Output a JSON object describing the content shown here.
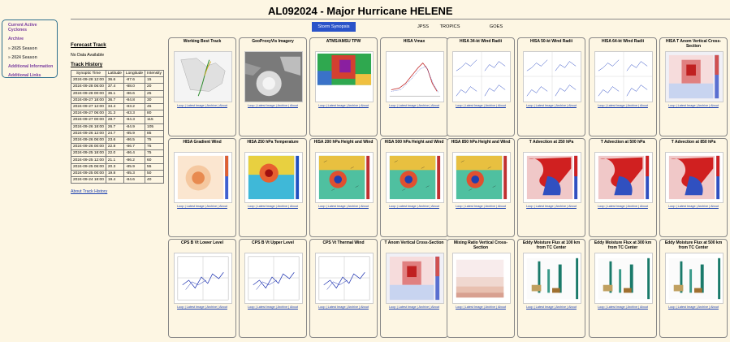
{
  "sidebar": {
    "items": [
      {
        "label": "Current Active",
        "cls": ""
      },
      {
        "label": "Cyclones",
        "cls": ""
      },
      {
        "label": "Archive",
        "cls": "gap"
      },
      {
        "label": "» 2025 Season",
        "cls": "gap sect"
      },
      {
        "label": "» 2024 Season",
        "cls": "gap sect"
      },
      {
        "label": "Additional Information",
        "cls": "gap"
      },
      {
        "label": "Additional Links",
        "cls": "gap"
      }
    ]
  },
  "page_title": "AL092024 - Major Hurricane HELENE",
  "tabs": [
    {
      "label": "Storm Synopsis",
      "active": true
    },
    {
      "label": "JPSS",
      "active": false
    },
    {
      "label": "TROPICS",
      "active": false
    },
    {
      "label": "GOES",
      "active": false
    }
  ],
  "forecast_track": {
    "heading": "Forecast Track",
    "no_data": "No Data Available"
  },
  "track_history": {
    "heading": "Track History",
    "columns": [
      "Synoptic Time",
      "Latitude",
      "Longitude",
      "Intensity"
    ],
    "rows": [
      [
        "2024-09-28 12:00",
        "36.6",
        "-87.6",
        "15"
      ],
      [
        "2024-09-28 06:00",
        "37.4",
        "-88.0",
        "20"
      ],
      [
        "2024-09-28 00:00",
        "36.1",
        "-86.6",
        "25"
      ],
      [
        "2024-09-27 18:00",
        "36.7",
        "-84.8",
        "30"
      ],
      [
        "2024-09-27 12:00",
        "34.4",
        "-83.2",
        "45"
      ],
      [
        "2024-09-27 06:00",
        "31.3",
        "-83.3",
        "80"
      ],
      [
        "2024-09-27 00:00",
        "28.7",
        "-84.3",
        "115"
      ],
      [
        "2024-09-26 18:00",
        "26.7",
        "-84.9",
        "105"
      ],
      [
        "2024-09-26 12:00",
        "24.7",
        "-85.9",
        "85"
      ],
      [
        "2024-09-26 06:00",
        "23.6",
        "-86.5",
        "75"
      ],
      [
        "2024-09-26 00:00",
        "22.8",
        "-86.7",
        "75"
      ],
      [
        "2024-09-25 18:00",
        "22.0",
        "-86.4",
        "75"
      ],
      [
        "2024-09-25 12:00",
        "21.1",
        "-86.2",
        "60"
      ],
      [
        "2024-09-25 06:00",
        "20.3",
        "-85.9",
        "55"
      ],
      [
        "2024-09-25 00:00",
        "19.8",
        "-85.3",
        "50"
      ],
      [
        "2024-09-24 18:00",
        "19.4",
        "-84.6",
        "40"
      ]
    ],
    "about_link": "About Track History"
  },
  "panel_links": "Loop | Latest Image | Archive | About",
  "panels": [
    {
      "title": "Working Best Track",
      "kind": "track"
    },
    {
      "title": "GeoProxyVis Imagery",
      "kind": "sat"
    },
    {
      "title": "ATMS/AMSU TPW",
      "kind": "tpw"
    },
    {
      "title": "HISA Vmax",
      "kind": "vmax"
    },
    {
      "title": "HISA 34-kt Wind Radii",
      "kind": "radii"
    },
    {
      "title": "HISA 50-kt Wind Radii",
      "kind": "radii"
    },
    {
      "title": "HISA 64-kt Wind Radii",
      "kind": "radii"
    },
    {
      "title": "HISA T Anom Vertical Cross-Section",
      "kind": "xsec"
    },
    {
      "title": "HISA Gradient Wind",
      "kind": "grad"
    },
    {
      "title": "HISA 250 hPa Temperature",
      "kind": "temp"
    },
    {
      "title": "HISA 200 hPa Height and Wind",
      "kind": "hgt"
    },
    {
      "title": "HISA 500 hPa Height and Wind",
      "kind": "hgt"
    },
    {
      "title": "HISA 850 hPa Height and Wind",
      "kind": "hgt"
    },
    {
      "title": "T Advection at 250 hPa",
      "kind": "adv"
    },
    {
      "title": "T Advection at 500 hPa",
      "kind": "adv"
    },
    {
      "title": "T Advection at 850 hPa",
      "kind": "adv"
    },
    {
      "title": "CPS B Vt Lower Level",
      "kind": "cps"
    },
    {
      "title": "CPS B Vt Upper Level",
      "kind": "cps"
    },
    {
      "title": "CPS Vt Thermal Wind",
      "kind": "cps"
    },
    {
      "title": "T Anom Vertical Cross-Section",
      "kind": "xsec"
    },
    {
      "title": "Mixing Ratio Vertical Cross-Section",
      "kind": "mix"
    },
    {
      "title": "Eddy Moisture Flux at 100 km from TC Center",
      "kind": "eddy"
    },
    {
      "title": "Eddy Moisture Flux at 300 km from TC Center",
      "kind": "eddy"
    },
    {
      "title": "Eddy Moisture Flux at 500 km from TC Center",
      "kind": "eddy"
    }
  ]
}
